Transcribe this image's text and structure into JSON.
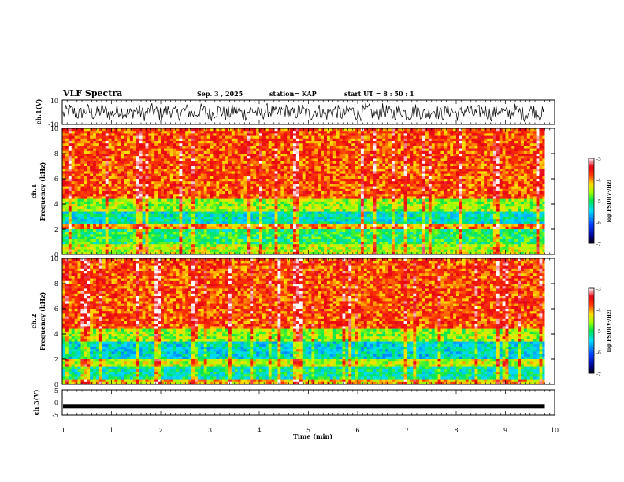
{
  "header": {
    "title": "VLF Spectra",
    "date": "Sep. 3 , 2025",
    "station": "station= KAP",
    "start": "start UT = 8 : 50 : 1"
  },
  "chart_data": [
    {
      "type": "line",
      "panel": "ch1-waveform",
      "ylabel": "ch.1(V)",
      "ylim": [
        -10,
        10
      ],
      "yticks": [
        "10",
        "-10"
      ],
      "x_range_min": [
        0,
        9.8
      ],
      "description_values": "noisy waveform, amplitude about ±6 V"
    },
    {
      "type": "heatmap",
      "panel": "ch1-spectrogram",
      "ylabel": "ch.1\nFrequency (kHz)",
      "ylim": [
        0,
        10
      ],
      "yticks": [
        "0",
        "2",
        "4",
        "6",
        "8",
        "10"
      ],
      "colorbar": {
        "label": "log(PSD)(V²/Hz)",
        "range": [
          -7,
          -3
        ],
        "ticks": [
          "-3",
          "-4",
          "-5",
          "-6",
          "-7"
        ]
      },
      "bands_khz": [
        {
          "from": 0.0,
          "to": 0.8,
          "level": -4.5
        },
        {
          "from": 0.8,
          "to": 2.0,
          "level": -5.0
        },
        {
          "from": 2.0,
          "to": 2.5,
          "level": -4.0
        },
        {
          "from": 2.5,
          "to": 3.5,
          "level": -5.3
        },
        {
          "from": 3.5,
          "to": 4.5,
          "level": -4.6
        },
        {
          "from": 4.5,
          "to": 10.0,
          "level": -3.8
        }
      ]
    },
    {
      "type": "heatmap",
      "panel": "ch2-spectrogram",
      "ylabel": "ch.2\nFrequency (kHz)",
      "ylim": [
        0,
        10
      ],
      "yticks": [
        "0",
        "2",
        "4",
        "6",
        "8",
        "10"
      ],
      "colorbar": {
        "label": "log(PSD)(V²/Hz)",
        "range": [
          -7,
          -3
        ],
        "ticks": [
          "-3",
          "-4",
          "-5",
          "-6",
          "-7"
        ]
      },
      "bands_khz": [
        {
          "from": 0.0,
          "to": 0.5,
          "level": -4.2
        },
        {
          "from": 0.5,
          "to": 1.5,
          "level": -5.2
        },
        {
          "from": 1.5,
          "to": 2.0,
          "level": -4.5
        },
        {
          "from": 2.0,
          "to": 3.5,
          "level": -5.4
        },
        {
          "from": 3.5,
          "to": 4.5,
          "level": -4.6
        },
        {
          "from": 4.5,
          "to": 10.0,
          "level": -3.8
        }
      ]
    },
    {
      "type": "line",
      "panel": "ch3-waveform",
      "ylabel": "ch.3(V)",
      "ylim": [
        -5,
        5
      ],
      "yticks": [
        "5",
        "0",
        "-5"
      ],
      "level_v": -1.5,
      "xlabel": "Time (min)",
      "xlim": [
        0,
        10
      ],
      "xticks": [
        "0",
        "1",
        "2",
        "3",
        "4",
        "5",
        "6",
        "7",
        "8",
        "9",
        "10"
      ]
    }
  ]
}
